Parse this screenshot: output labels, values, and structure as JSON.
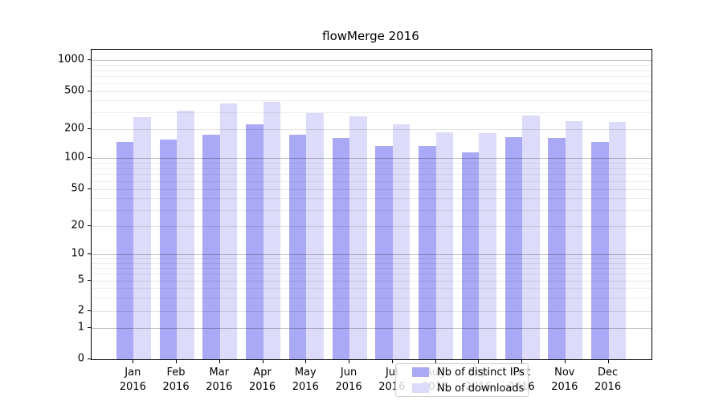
{
  "title": "flowMerge 2016",
  "colors": {
    "ips_bar": "#a9a9f5",
    "downloads_bar": "#dcdcfa",
    "spine": "#000000",
    "grid_major": "#c2c2c2",
    "grid_minor": "#ebebeb",
    "legend_border": "#cccccc"
  },
  "legend": {
    "items": [
      {
        "label": "Nb of distinct IPs",
        "color_key": "ips_bar"
      },
      {
        "label": "Nb of downloads",
        "color_key": "downloads_bar"
      }
    ]
  },
  "y_axis": {
    "tick_labels": [
      "0",
      "1",
      "2",
      "5",
      "10",
      "20",
      "50",
      "100",
      "200",
      "500",
      "1000"
    ]
  },
  "x_axis": {
    "tick_labels": [
      "Jan 2016",
      "Feb 2016",
      "Mar 2016",
      "Apr 2016",
      "May 2016",
      "Jun 2016",
      "Jul 2016",
      "Aug 2016",
      "Sep 2016",
      "Oct 2016",
      "Nov 2016",
      "Dec 2016"
    ]
  },
  "chart_data": {
    "type": "bar",
    "title": "flowMerge 2016",
    "categories": [
      "Jan 2016",
      "Feb 2016",
      "Mar 2016",
      "Apr 2016",
      "May 2016",
      "Jun 2016",
      "Jul 2016",
      "Aug 2016",
      "Sep 2016",
      "Oct 2016",
      "Nov 2016",
      "Dec 2016"
    ],
    "series": [
      {
        "name": "Nb of distinct IPs",
        "values": [
          148,
          156,
          174,
          226,
          176,
          161,
          133,
          133,
          114,
          166,
          163,
          147
        ]
      },
      {
        "name": "Nb of downloads",
        "values": [
          270,
          315,
          370,
          388,
          297,
          275,
          224,
          185,
          182,
          278,
          243,
          238
        ]
      }
    ],
    "xlabel": "",
    "ylabel": "",
    "yscale": "symlog",
    "yticks": [
      0,
      1,
      2,
      5,
      10,
      20,
      50,
      100,
      200,
      500,
      1000
    ],
    "yticks_major": [
      1,
      10,
      100,
      1000
    ],
    "yticks_minor": [
      3,
      4,
      6,
      7,
      8,
      9,
      30,
      40,
      60,
      70,
      80,
      90,
      300,
      400,
      600,
      700,
      800,
      900
    ],
    "ylim": [
      0,
      1000
    ],
    "grid": true,
    "legend_position": "lower center"
  }
}
